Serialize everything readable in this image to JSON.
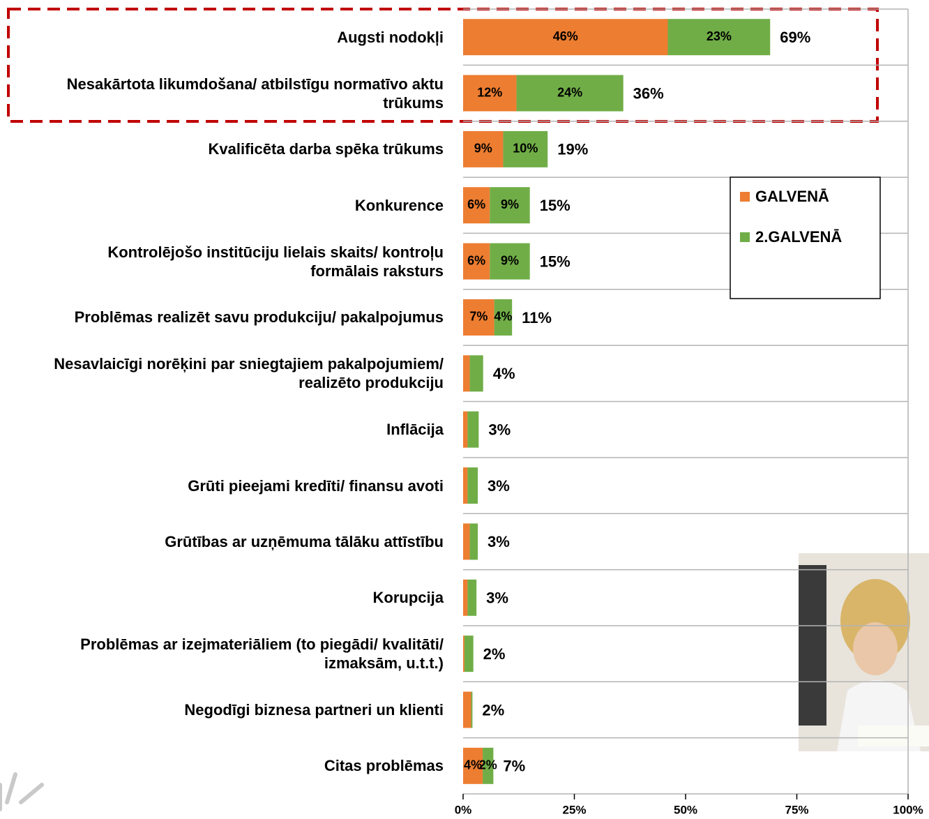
{
  "chart_data": {
    "type": "bar",
    "orientation": "horizontal",
    "stacked": true,
    "categories": [
      "Augsti nodokļi",
      "Nesakārtota likumdošana/ atbilstīgu normatīvo aktu trūkums",
      "Kvalificēta darba spēka trūkums",
      "Konkurence",
      "Kontrolējošo institūciju lielais skaits/ kontroļu formālais raksturs",
      "Problēmas realizēt savu produkciju/ pakalpojumus",
      "Nesavlaicīgi norēķini par sniegtajiem pakalpojumiem/ realizēto produkciju",
      "Inflācija",
      "Grūti pieejami kredīti/ finansu avoti",
      "Grūtības ar uzņēmuma tālāku attīstību",
      "Korupcija",
      "Problēmas ar izejmateriāliem (to piegādi/ kvalitāti/ izmaksām, u.t.t.)",
      "Negodīgi biznesa partneri un klienti",
      "Citas problēmas"
    ],
    "series": [
      {
        "name": "GALVENĀ",
        "color": "#ed7d31",
        "values": [
          46,
          12,
          9,
          6,
          6,
          7,
          1.5,
          1,
          1,
          1.5,
          1,
          0.3,
          1.8,
          4.4
        ],
        "value_labels": [
          "46%",
          "12%",
          "9%",
          "6%",
          "6%",
          "7%",
          null,
          null,
          null,
          null,
          null,
          null,
          null,
          "4%"
        ]
      },
      {
        "name": "2.GALVENĀ",
        "color": "#70ad47",
        "values": [
          23,
          24,
          10,
          9,
          9,
          4,
          3,
          2.5,
          2.3,
          1.8,
          2,
          2,
          0.3,
          2.4
        ],
        "value_labels": [
          "23%",
          "24%",
          "10%",
          "9%",
          "9%",
          "4%",
          null,
          null,
          null,
          null,
          null,
          null,
          null,
          "2%"
        ]
      }
    ],
    "totals": {
      "values": [
        69,
        36,
        19,
        15,
        15,
        11,
        4,
        3,
        3,
        3,
        3,
        2,
        2,
        7
      ],
      "value_labels": [
        "69%",
        "36%",
        "19%",
        "15%",
        "15%",
        "11%",
        "4%",
        "3%",
        "3%",
        "3%",
        "3%",
        "2%",
        "2%",
        "7%"
      ]
    },
    "xlim": [
      0,
      100
    ],
    "xticks": [
      {
        "value": 0,
        "label": "0%"
      },
      {
        "value": 25,
        "label": "25%"
      },
      {
        "value": 50,
        "label": "50%"
      },
      {
        "value": 75,
        "label": "75%"
      },
      {
        "value": 100,
        "label": "100%"
      }
    ],
    "legend": "right"
  }
}
